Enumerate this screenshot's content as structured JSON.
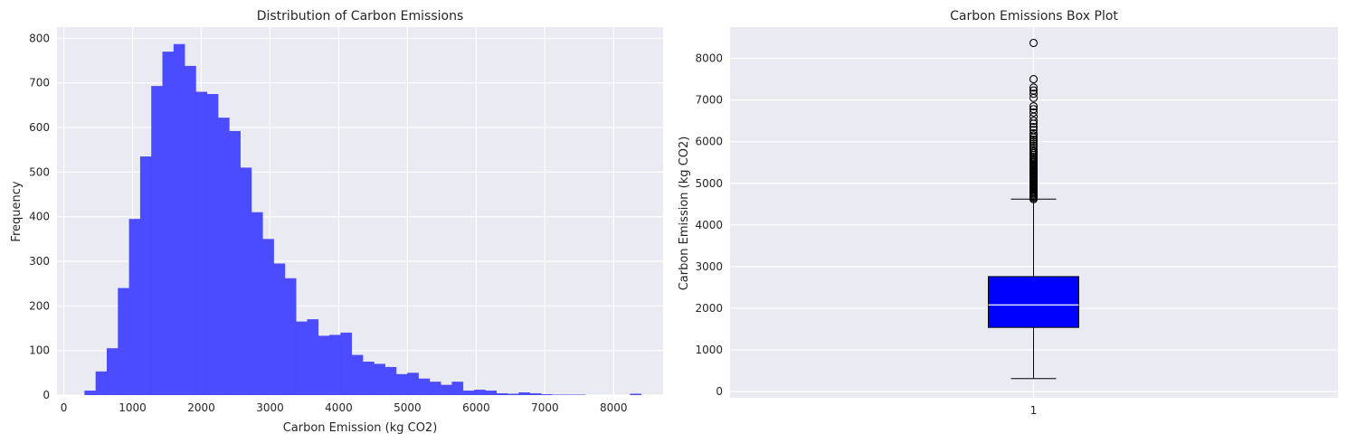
{
  "chart_data": [
    {
      "type": "bar",
      "subtype": "histogram",
      "title": "Distribution of Carbon Emissions",
      "xlabel": "Carbon Emission (kg CO2)",
      "ylabel": "Frequency",
      "xlim": [
        -100,
        8720
      ],
      "ylim": [
        0,
        825
      ],
      "xticks": [
        0,
        1000,
        2000,
        3000,
        4000,
        5000,
        6000,
        7000,
        8000
      ],
      "yticks": [
        0,
        100,
        200,
        300,
        400,
        500,
        600,
        700,
        800
      ],
      "grid": true,
      "color": "#4545ff",
      "bin_start": 300,
      "bin_width": 162,
      "values": [
        10,
        53,
        105,
        240,
        395,
        535,
        693,
        770,
        787,
        738,
        680,
        675,
        622,
        592,
        510,
        410,
        350,
        295,
        262,
        165,
        170,
        133,
        135,
        140,
        90,
        75,
        70,
        63,
        47,
        50,
        37,
        30,
        23,
        30,
        10,
        12,
        10,
        4,
        3,
        6,
        4,
        2,
        1,
        1,
        1,
        0,
        0,
        0,
        0,
        3
      ]
    },
    {
      "type": "box",
      "title": "Carbon Emissions Box Plot",
      "ylabel": "Carbon Emission (kg CO2)",
      "xlabel": "",
      "ylim": [
        -150,
        8750
      ],
      "yticks": [
        0,
        1000,
        2000,
        3000,
        4000,
        5000,
        6000,
        7000,
        8000
      ],
      "xticks": [
        "1"
      ],
      "grid": true,
      "box_color": "#0000ff",
      "median_color": "#ffffff",
      "stats": {
        "min": 310,
        "q1": 1540,
        "median": 2080,
        "q3": 2760,
        "max": 4620
      },
      "outliers": [
        4620,
        4650,
        4680,
        4700,
        4730,
        4760,
        4790,
        4820,
        4850,
        4880,
        4910,
        4940,
        4970,
        5000,
        5030,
        5060,
        5090,
        5120,
        5150,
        5180,
        5210,
        5240,
        5270,
        5300,
        5330,
        5360,
        5390,
        5420,
        5450,
        5480,
        5510,
        5540,
        5570,
        5600,
        5640,
        5680,
        5720,
        5760,
        5800,
        5850,
        5900,
        5950,
        6000,
        6050,
        6100,
        6150,
        6200,
        6280,
        6350,
        6430,
        6500,
        6600,
        6700,
        6780,
        6850,
        7050,
        7150,
        7230,
        7300,
        7500,
        8370
      ]
    }
  ]
}
